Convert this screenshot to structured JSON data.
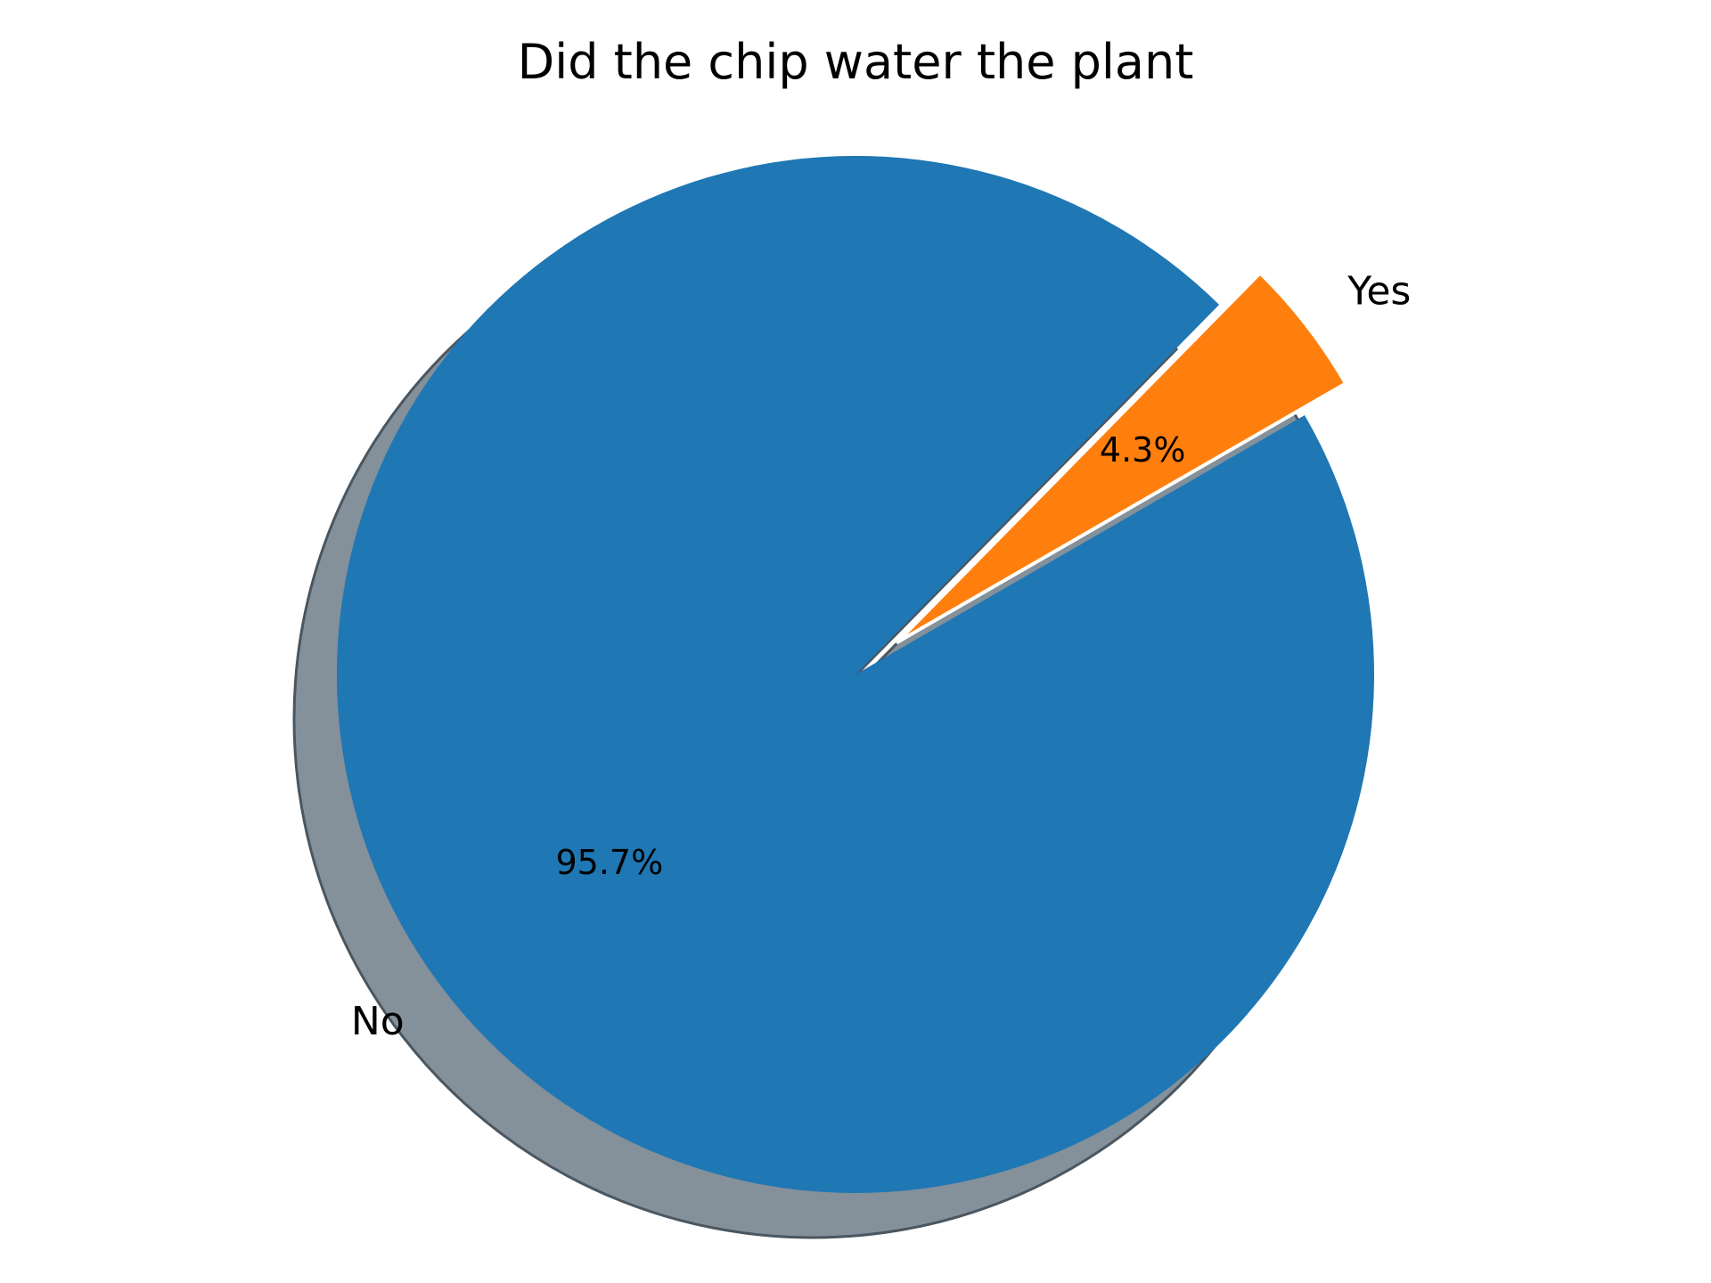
{
  "chart_data": {
    "type": "pie",
    "title": "Did the chip water the plant",
    "slices": [
      {
        "label": "Yes",
        "value": 4.3,
        "pct_label": "4.3%",
        "color": "#ff7f0e",
        "exploded": true
      },
      {
        "label": "No",
        "value": 95.7,
        "pct_label": "95.7%",
        "color": "#1f77b4",
        "exploded": false
      }
    ],
    "shadow": true,
    "shadow_color": "#84909a",
    "start_angle_deg": 30,
    "direction": "counterclockwise"
  }
}
